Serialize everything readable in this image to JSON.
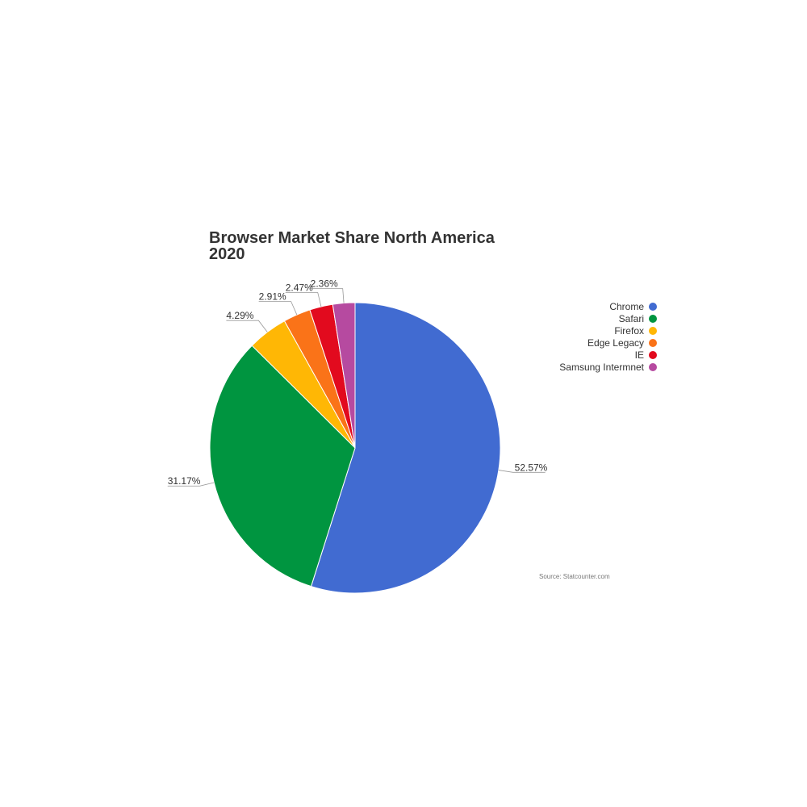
{
  "chart_data": {
    "type": "pie",
    "title_lines": [
      "Browser Market Share North America",
      "2020"
    ],
    "categories": [
      "Chrome",
      "Safari",
      "Firefox",
      "Edge Legacy",
      "IE",
      "Samsung Intermnet"
    ],
    "values": [
      52.57,
      31.17,
      4.29,
      2.91,
      2.47,
      2.36
    ],
    "value_labels": [
      "52.57%",
      "31.17%",
      "4.29%",
      "2.91%",
      "2.47%",
      "2.36%"
    ],
    "colors": [
      "#416bd1",
      "#009540",
      "#ffb705",
      "#fa7318",
      "#e20a1e",
      "#b64aa0"
    ],
    "legend_position": "right",
    "source": "Source: Statcounter.com"
  }
}
